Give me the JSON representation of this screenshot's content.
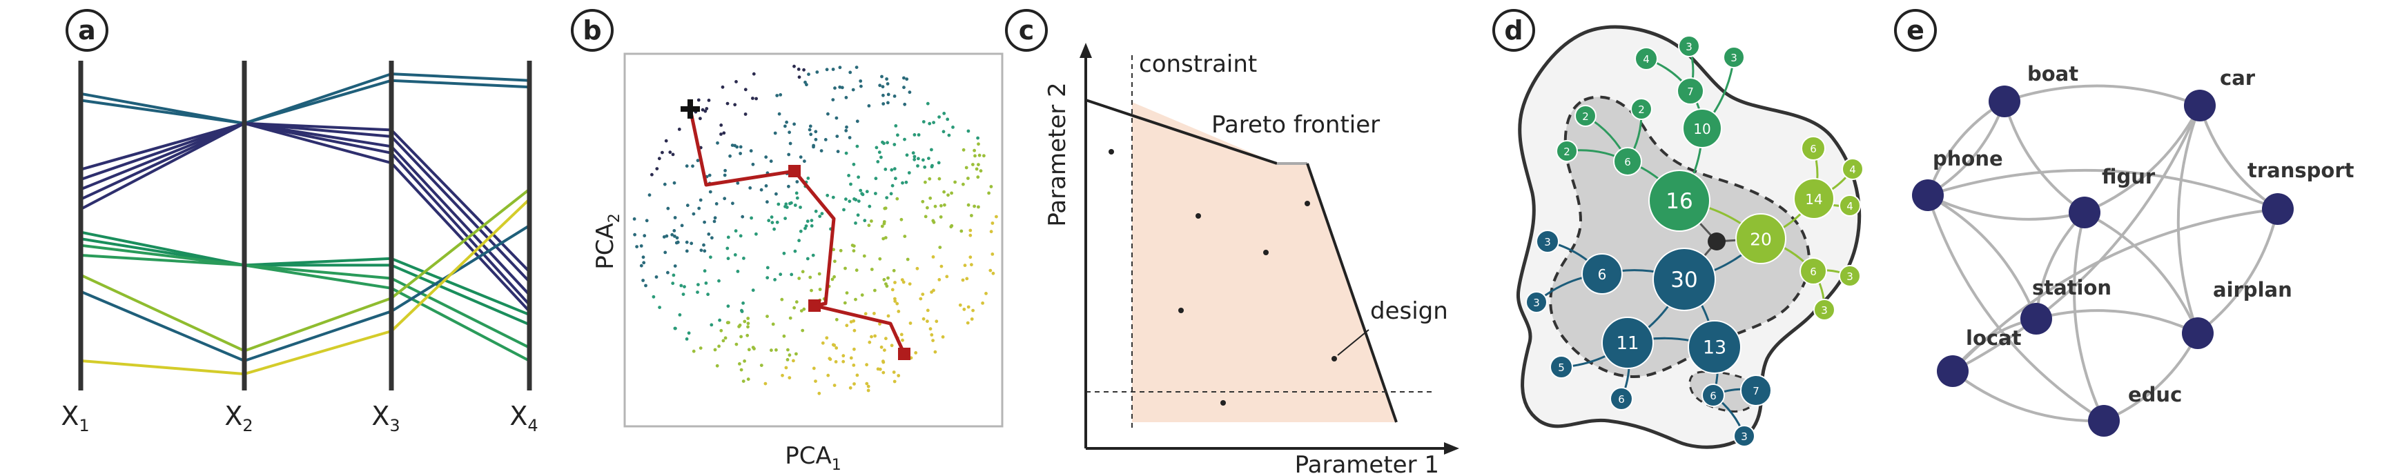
{
  "panels": {
    "a": {
      "letter": "a",
      "axes": [
        {
          "label": "X",
          "sub": "1"
        },
        {
          "label": "X",
          "sub": "2"
        },
        {
          "label": "X",
          "sub": "3"
        },
        {
          "label": "X",
          "sub": "4"
        }
      ],
      "lines": [
        {
          "color": "#1f5f7a",
          "values": [
            0.9,
            0.81,
            0.96,
            0.94
          ]
        },
        {
          "color": "#1f5f7a",
          "values": [
            0.88,
            0.81,
            0.94,
            0.92
          ]
        },
        {
          "color": "#2e2f6e",
          "values": [
            0.67,
            0.81,
            0.79,
            0.36
          ]
        },
        {
          "color": "#2e2f6e",
          "values": [
            0.64,
            0.81,
            0.77,
            0.33
          ]
        },
        {
          "color": "#2e2f6e",
          "values": [
            0.61,
            0.81,
            0.74,
            0.29
          ]
        },
        {
          "color": "#2e2f6e",
          "values": [
            0.58,
            0.81,
            0.72,
            0.26
          ]
        },
        {
          "color": "#2e2f6e",
          "values": [
            0.55,
            0.81,
            0.69,
            0.24
          ]
        },
        {
          "color": "#1a8e5c",
          "values": [
            0.48,
            0.38,
            0.4,
            0.23
          ]
        },
        {
          "color": "#1a8e5c",
          "values": [
            0.46,
            0.38,
            0.38,
            0.2
          ]
        },
        {
          "color": "#2a9b5a",
          "values": [
            0.44,
            0.38,
            0.34,
            0.13
          ]
        },
        {
          "color": "#2a9b5a",
          "values": [
            0.41,
            0.38,
            0.31,
            0.09
          ]
        },
        {
          "color": "#8fbc2f",
          "values": [
            0.35,
            0.12,
            0.28,
            0.61
          ]
        },
        {
          "color": "#1f5f7a",
          "values": [
            0.3,
            0.09,
            0.24,
            0.5
          ]
        },
        {
          "color": "#d4cc2a",
          "values": [
            0.09,
            0.05,
            0.18,
            0.58
          ]
        }
      ]
    },
    "b": {
      "letter": "b",
      "xlabel": "PCA",
      "xlabel_sub": "1",
      "ylabel": "PCA",
      "ylabel_sub": "2"
    },
    "c": {
      "letter": "c",
      "ylabel": "Parameter 2",
      "xlabel": "Parameter 1",
      "constraint_label": "constraint",
      "pareto_label": "Pareto frontier",
      "design_label": "design",
      "region_color": "#f9e2d3"
    },
    "d": {
      "letter": "d",
      "nodes": [
        {
          "v": "4",
          "c": "#2e9a5e"
        },
        {
          "v": "3",
          "c": "#2e9a5e"
        },
        {
          "v": "3",
          "c": "#2e9a5e"
        },
        {
          "v": "7",
          "c": "#2e9a5e"
        },
        {
          "v": "2",
          "c": "#2e9a5e"
        },
        {
          "v": "2",
          "c": "#2e9a5e"
        },
        {
          "v": "2",
          "c": "#2e9a5e"
        },
        {
          "v": "6",
          "c": "#2e9a5e"
        },
        {
          "v": "10",
          "c": "#2e9a5e"
        },
        {
          "v": "16",
          "c": "#2e9a5e"
        },
        {
          "v": "6",
          "c": "#8fbf34"
        },
        {
          "v": "4",
          "c": "#8fbf34"
        },
        {
          "v": "14",
          "c": "#8fbf34"
        },
        {
          "v": "4",
          "c": "#8fbf34"
        },
        {
          "v": "20",
          "c": "#8fbf34"
        },
        {
          "v": "6",
          "c": "#8fbf34"
        },
        {
          "v": "3",
          "c": "#8fbf34"
        },
        {
          "v": "3",
          "c": "#8fbf34"
        },
        {
          "v": "3",
          "c": "#1c5c7a"
        },
        {
          "v": "6",
          "c": "#1c5c7a"
        },
        {
          "v": "30",
          "c": "#1c5c7a"
        },
        {
          "v": "3",
          "c": "#1c5c7a"
        },
        {
          "v": "11",
          "c": "#1c5c7a"
        },
        {
          "v": "13",
          "c": "#1c5c7a"
        },
        {
          "v": "5",
          "c": "#1c5c7a"
        },
        {
          "v": "6",
          "c": "#1c5c7a"
        },
        {
          "v": "6",
          "c": "#1c5c7a"
        },
        {
          "v": "7",
          "c": "#1c5c7a"
        },
        {
          "v": "3",
          "c": "#1c5c7a"
        }
      ]
    },
    "e": {
      "letter": "e",
      "node_color": "#2b2b6b",
      "nodes": [
        "boat",
        "car",
        "phone",
        "figur",
        "transport",
        "station",
        "airplan",
        "locat",
        "educ"
      ]
    }
  }
}
